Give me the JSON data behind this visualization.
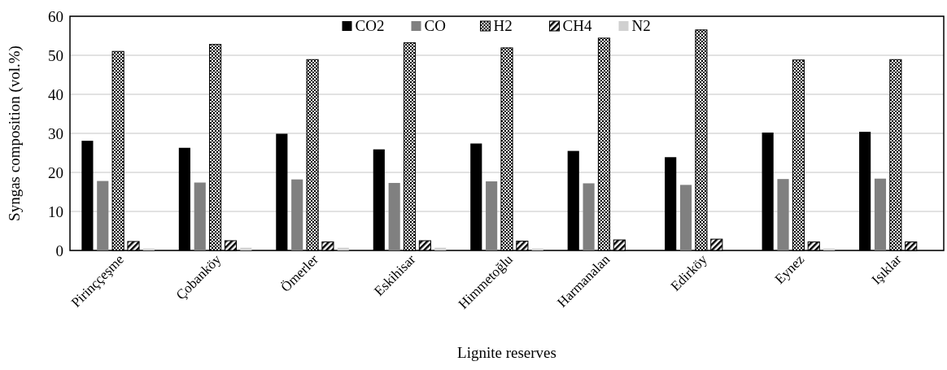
{
  "chart_data": {
    "type": "bar",
    "xlabel": "Lignite reserves",
    "ylabel": "Syngas composition (vol.%)",
    "categories": [
      "Pirinççeşme",
      "Çobanköy",
      "Ömerler",
      "Eskihisar",
      "Himmetoğlu",
      "Harmanalan",
      "Edirköy",
      "Eynez",
      "Işıklar"
    ],
    "series": [
      {
        "name": "CO2",
        "color": "#000000",
        "values": [
          28.1,
          26.3,
          29.9,
          25.9,
          27.4,
          25.5,
          23.9,
          30.2,
          30.4
        ]
      },
      {
        "name": "CO",
        "color": "#808080",
        "values": [
          17.8,
          17.4,
          18.2,
          17.3,
          17.7,
          17.2,
          16.8,
          18.3,
          18.4
        ]
      },
      {
        "name": "H2",
        "color": "#000000",
        "values": [
          51.0,
          52.8,
          48.9,
          53.2,
          51.9,
          54.4,
          56.5,
          48.8,
          48.9
        ]
      },
      {
        "name": "CH4",
        "color": "#000000",
        "values": [
          2.3,
          2.5,
          2.2,
          2.5,
          2.4,
          2.7,
          2.9,
          2.2,
          2.2
        ]
      },
      {
        "name": "N2",
        "color": "#d0d0d0",
        "values": [
          0.5,
          0.7,
          0.7,
          0.7,
          0.5,
          null,
          null,
          0.5,
          null
        ]
      }
    ],
    "ylim": [
      0,
      60
    ],
    "yticks": [
      0,
      10,
      20,
      30,
      40,
      50,
      60
    ],
    "grid": "y",
    "legend": "top"
  }
}
